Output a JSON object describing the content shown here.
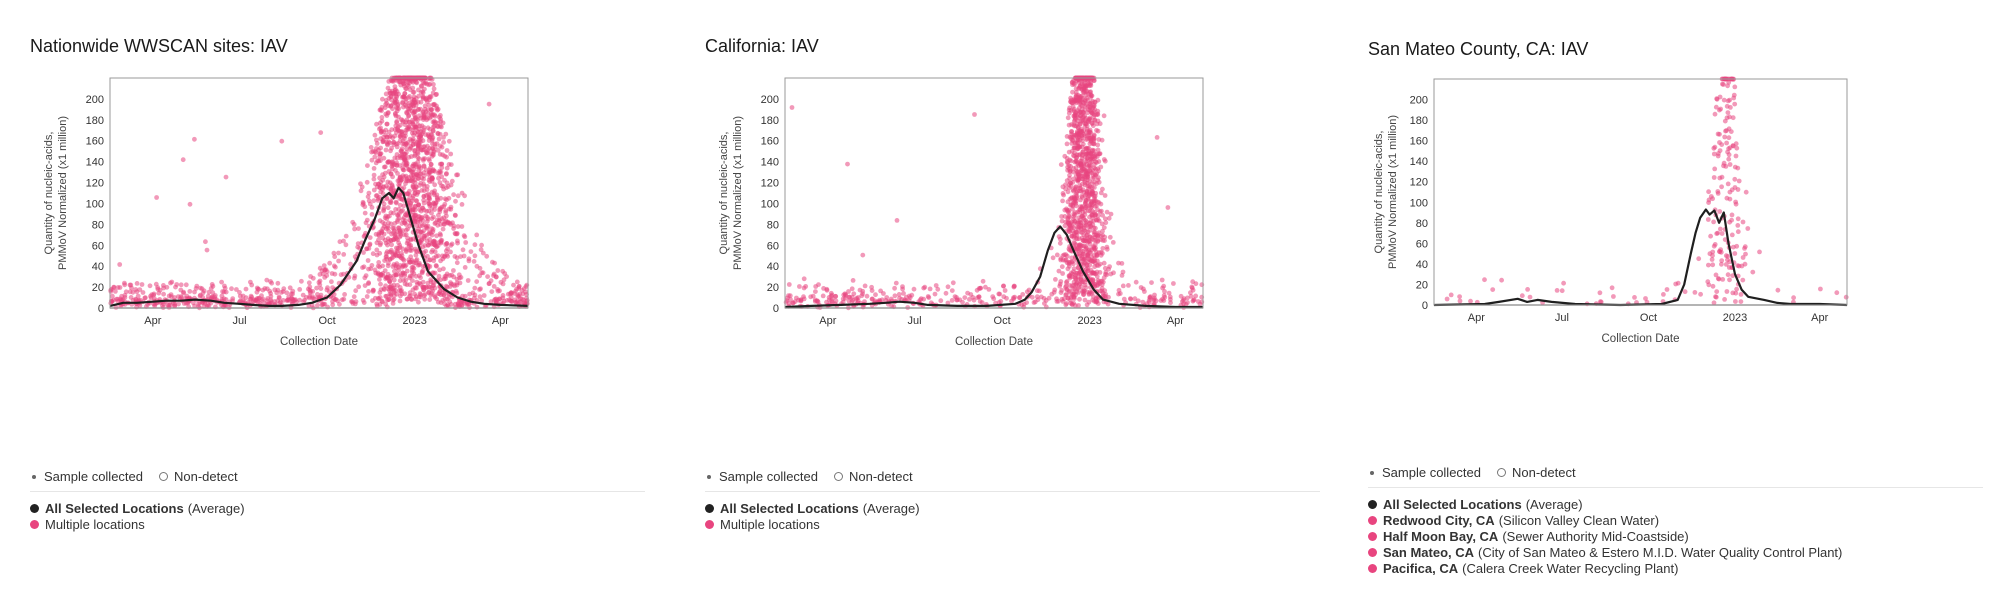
{
  "colors": {
    "point": "#e8457f",
    "line": "#1f1f1f",
    "axis_box": "#999999",
    "zero_line": "#cfcfcf"
  },
  "legend": {
    "sample_collected": "Sample collected",
    "non_detect": "Non-detect"
  },
  "panels": [
    {
      "title": "Nationwide WWSCAN sites: IAV",
      "locations": [
        {
          "name": "All Selected Locations",
          "desc": "(Average)",
          "color": "#222222"
        },
        {
          "name": "",
          "desc": "Multiple locations",
          "color": "#e8457f"
        }
      ]
    },
    {
      "title": "California: IAV",
      "locations": [
        {
          "name": "All Selected Locations",
          "desc": "(Average)",
          "color": "#222222"
        },
        {
          "name": "",
          "desc": "Multiple locations",
          "color": "#e8457f"
        }
      ]
    },
    {
      "title": "San Mateo County, CA: IAV",
      "locations": [
        {
          "name": "All Selected Locations",
          "desc": "(Average)",
          "color": "#222222"
        },
        {
          "name": "Redwood City, CA",
          "desc": "(Silicon Valley Clean Water)",
          "color": "#e8457f"
        },
        {
          "name": "Half Moon Bay, CA",
          "desc": "(Sewer Authority Mid-Coastside)",
          "color": "#e8457f"
        },
        {
          "name": "San Mateo, CA",
          "desc": "(City of San Mateo & Estero M.I.D. Water Quality Control Plant)",
          "color": "#e8457f"
        },
        {
          "name": "Pacifica, CA",
          "desc": "(Calera Creek Water Recycling Plant)",
          "color": "#e8457f"
        }
      ]
    }
  ],
  "chart_data": [
    {
      "type": "scatter",
      "title": "Nationwide WWSCAN sites: IAV",
      "xlabel": "Collection Date",
      "ylabel": [
        "Quantity of nucleic-acids,",
        "PMMoV Normalized (x1 million)"
      ],
      "ylim": [
        0,
        220
      ],
      "yticks": [
        0,
        20,
        40,
        60,
        80,
        100,
        120,
        140,
        160,
        180,
        200
      ],
      "xlim": [
        "2022-02-15",
        "2023-04-30"
      ],
      "xticks": [
        {
          "date": "2022-04-01",
          "label": "Apr"
        },
        {
          "date": "2022-07-01",
          "label": "Jul"
        },
        {
          "date": "2022-10-01",
          "label": "Oct"
        },
        {
          "date": "2023-01-01",
          "label": "2023"
        },
        {
          "date": "2023-04-01",
          "label": "Apr"
        }
      ],
      "grid": false,
      "series": [
        {
          "name": "All Selected Locations (Average)",
          "type": "line",
          "x": [
            "2022-02-15",
            "2022-03-01",
            "2022-03-15",
            "2022-04-01",
            "2022-04-15",
            "2022-05-01",
            "2022-05-15",
            "2022-06-01",
            "2022-06-15",
            "2022-07-01",
            "2022-07-15",
            "2022-08-01",
            "2022-08-15",
            "2022-09-01",
            "2022-09-15",
            "2022-10-01",
            "2022-10-15",
            "2022-11-01",
            "2022-11-10",
            "2022-11-20",
            "2022-11-28",
            "2022-12-05",
            "2022-12-10",
            "2022-12-15",
            "2022-12-20",
            "2022-12-28",
            "2023-01-05",
            "2023-01-15",
            "2023-02-01",
            "2023-02-15",
            "2023-03-01",
            "2023-03-15",
            "2023-04-01",
            "2023-04-30"
          ],
          "y": [
            2,
            5,
            5,
            6,
            7,
            7,
            8,
            7,
            5,
            4,
            3,
            2,
            2,
            3,
            5,
            10,
            22,
            45,
            65,
            85,
            105,
            110,
            105,
            115,
            110,
            85,
            60,
            35,
            18,
            10,
            6,
            4,
            3,
            2
          ]
        },
        {
          "name": "Multiple locations",
          "type": "scatter",
          "note": "thousands of individual site samples"
        }
      ]
    },
    {
      "type": "scatter",
      "title": "California: IAV",
      "xlabel": "Collection Date",
      "ylabel": [
        "Quantity of nucleic-acids,",
        "PMMoV Normalized (x1 million)"
      ],
      "ylim": [
        0,
        220
      ],
      "yticks": [
        0,
        20,
        40,
        60,
        80,
        100,
        120,
        140,
        160,
        180,
        200
      ],
      "xlim": [
        "2022-02-15",
        "2023-04-30"
      ],
      "xticks": [
        {
          "date": "2022-04-01",
          "label": "Apr"
        },
        {
          "date": "2022-07-01",
          "label": "Jul"
        },
        {
          "date": "2022-10-01",
          "label": "Oct"
        },
        {
          "date": "2023-01-01",
          "label": "2023"
        },
        {
          "date": "2023-04-01",
          "label": "Apr"
        }
      ],
      "grid": false,
      "series": [
        {
          "name": "All Selected Locations (Average)",
          "type": "line",
          "x": [
            "2022-02-15",
            "2022-03-15",
            "2022-04-15",
            "2022-05-15",
            "2022-06-01",
            "2022-06-15",
            "2022-07-01",
            "2022-07-15",
            "2022-08-15",
            "2022-09-15",
            "2022-10-15",
            "2022-10-25",
            "2022-11-01",
            "2022-11-10",
            "2022-11-18",
            "2022-11-25",
            "2022-12-01",
            "2022-12-08",
            "2022-12-15",
            "2022-12-25",
            "2023-01-05",
            "2023-01-15",
            "2023-02-01",
            "2023-03-01",
            "2023-04-01",
            "2023-04-30"
          ],
          "y": [
            1,
            2,
            3,
            4,
            5,
            6,
            5,
            3,
            2,
            2,
            4,
            8,
            15,
            30,
            55,
            72,
            78,
            70,
            55,
            35,
            18,
            8,
            4,
            2,
            1,
            1
          ]
        },
        {
          "name": "Multiple locations",
          "type": "scatter",
          "note": "individual California site samples"
        }
      ]
    },
    {
      "type": "scatter",
      "title": "San Mateo County, CA: IAV",
      "xlabel": "Collection Date",
      "ylabel": [
        "Quantity of nucleic-acids,",
        "PMMoV Normalized (x1 million)"
      ],
      "ylim": [
        0,
        220
      ],
      "yticks": [
        0,
        20,
        40,
        60,
        80,
        100,
        120,
        140,
        160,
        180,
        200
      ],
      "xlim": [
        "2022-02-15",
        "2023-04-30"
      ],
      "xticks": [
        {
          "date": "2022-04-01",
          "label": "Apr"
        },
        {
          "date": "2022-07-01",
          "label": "Jul"
        },
        {
          "date": "2022-10-01",
          "label": "Oct"
        },
        {
          "date": "2023-01-01",
          "label": "2023"
        },
        {
          "date": "2023-04-01",
          "label": "Apr"
        }
      ],
      "grid": false,
      "series": [
        {
          "name": "All Selected Locations (Average)",
          "type": "line",
          "x": [
            "2022-02-15",
            "2022-04-10",
            "2022-04-25",
            "2022-05-15",
            "2022-05-25",
            "2022-06-05",
            "2022-06-20",
            "2022-07-15",
            "2022-09-01",
            "2022-10-15",
            "2022-11-01",
            "2022-11-08",
            "2022-11-15",
            "2022-11-20",
            "2022-11-25",
            "2022-12-01",
            "2022-12-05",
            "2022-12-10",
            "2022-12-15",
            "2022-12-20",
            "2022-12-25",
            "2023-01-01",
            "2023-01-08",
            "2023-01-15",
            "2023-02-01",
            "2023-02-15",
            "2023-03-01",
            "2023-04-01",
            "2023-04-30"
          ],
          "y": [
            0,
            1,
            3,
            6,
            3,
            5,
            3,
            1,
            0,
            1,
            5,
            20,
            50,
            70,
            85,
            93,
            88,
            92,
            80,
            90,
            60,
            30,
            15,
            8,
            5,
            2,
            1,
            1,
            0
          ]
        },
        {
          "name": "Redwood City, CA / Half Moon Bay, CA / San Mateo, CA / Pacifica, CA",
          "type": "scatter",
          "note": "individual plant samples"
        }
      ]
    }
  ]
}
